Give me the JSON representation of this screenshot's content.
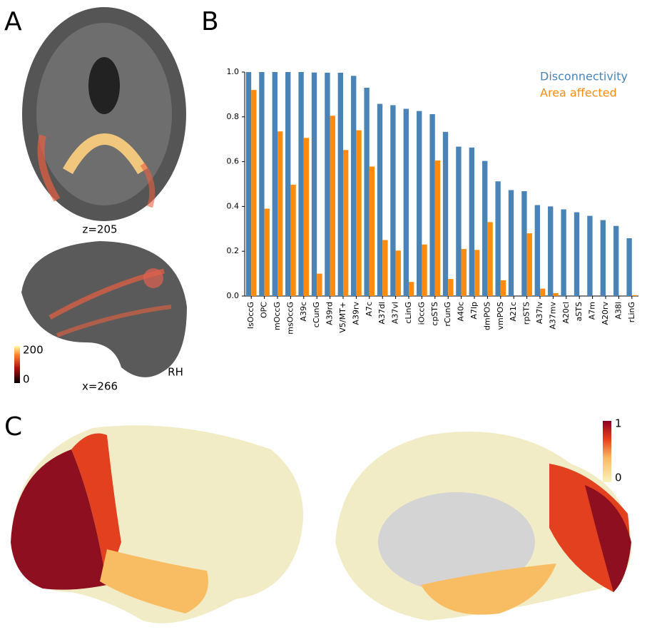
{
  "panel_a": {
    "label": "A",
    "axial_caption": "z=205",
    "sagittal_caption": "x=266",
    "hemisphere": "RH",
    "colorbar_max": "200",
    "colorbar_min": "0"
  },
  "panel_b": {
    "label": "B"
  },
  "panel_c": {
    "label": "C",
    "colorbar_max": "1",
    "colorbar_min": "0"
  },
  "chart_data": {
    "type": "bar",
    "categories": [
      "lsOccG",
      "OPC",
      "mOccG",
      "msOccG",
      "A39c",
      "cCunG",
      "A39rd",
      "V5/MT+",
      "A39rv",
      "A7c",
      "A37dl",
      "A37vl",
      "cLinG",
      "iOccG",
      "cpSTS",
      "rCunG",
      "A40c",
      "A7lp",
      "dmPOS",
      "vmPOS",
      "A21c",
      "rpSTS",
      "A37lv",
      "A37mv",
      "A20cl",
      "aSTS",
      "A7m",
      "A20rv",
      "A38l",
      "rLinG"
    ],
    "series": [
      {
        "name": "Disconnectivity",
        "color": "#4a84b6",
        "values": [
          1.0,
          1.0,
          1.0,
          1.0,
          1.0,
          0.998,
          0.997,
          0.997,
          0.983,
          0.93,
          0.858,
          0.852,
          0.836,
          0.826,
          0.812,
          0.733,
          0.667,
          0.663,
          0.603,
          0.512,
          0.473,
          0.468,
          0.406,
          0.4,
          0.387,
          0.374,
          0.358,
          0.339,
          0.313,
          0.258
        ]
      },
      {
        "name": "Area affected",
        "color": "#ff8c0f",
        "values": [
          0.92,
          0.39,
          0.735,
          0.497,
          0.706,
          0.1,
          0.805,
          0.652,
          0.74,
          0.578,
          0.25,
          0.203,
          0.063,
          0.23,
          0.605,
          0.076,
          0.21,
          0.206,
          0.33,
          0.07,
          0,
          0.28,
          0.033,
          0.013,
          0,
          0,
          0,
          0,
          0,
          0.004
        ]
      }
    ],
    "ylim": [
      0,
      1.0
    ],
    "yticks": [
      {
        "value": 0,
        "label": "0.0"
      },
      0.2,
      0.4,
      0.6,
      0.8,
      {
        "value": 1,
        "label": "1.0"
      }
    ],
    "legend": "upper right"
  }
}
